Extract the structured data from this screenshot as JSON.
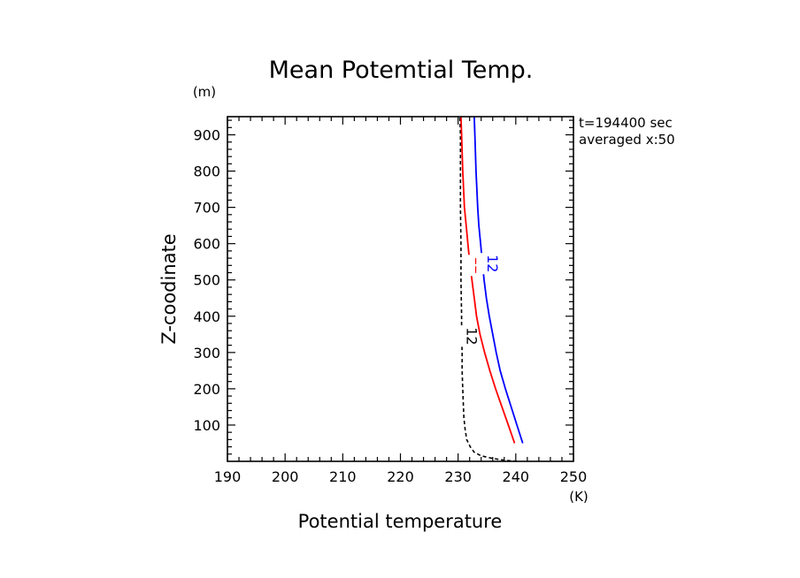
{
  "chart_data": {
    "type": "line",
    "title": "Mean Potemtial Temp.",
    "xlabel": "Potential temperature",
    "ylabel": "Z-coodinate",
    "xunit": "(K)",
    "yunit": "(m)",
    "xlim": [
      190,
      250
    ],
    "ylim": [
      0,
      950
    ],
    "xticks": [
      190,
      200,
      210,
      220,
      230,
      240,
      250
    ],
    "yticks": [
      100,
      200,
      300,
      400,
      500,
      600,
      700,
      800,
      900
    ],
    "grid": false,
    "annotations": [
      "t=194400 sec",
      "averaged  x:50"
    ],
    "series": [
      {
        "label": "12",
        "color": "#000000",
        "dashed": true,
        "x": [
          240.2,
          238.0,
          236.0,
          234.0,
          232.8,
          232.1,
          231.5,
          231.2,
          231.0,
          230.9,
          230.8,
          230.7,
          230.7,
          230.6,
          230.6,
          230.5,
          230.5,
          230.4,
          230.4,
          230.4,
          230.3
        ],
        "y": [
          0,
          3,
          8,
          15,
          25,
          40,
          60,
          90,
          120,
          160,
          200,
          250,
          300,
          350,
          400,
          500,
          600,
          700,
          800,
          900,
          950
        ]
      },
      {
        "label": "12",
        "color": "#ff0000",
        "dashed": false,
        "x": [
          239.8,
          238.7,
          237.6,
          236.5,
          235.5,
          234.6,
          233.8,
          233.2,
          232.8,
          232.4,
          232.0,
          231.7,
          231.4,
          231.1,
          230.8,
          230.6,
          230.5
        ],
        "y": [
          50,
          100,
          150,
          200,
          250,
          300,
          350,
          400,
          450,
          500,
          550,
          600,
          650,
          700,
          800,
          900,
          950
        ]
      },
      {
        "label": "12",
        "color": "#0000ff",
        "dashed": false,
        "x": [
          241.2,
          240.2,
          239.2,
          238.2,
          237.3,
          236.6,
          236.0,
          235.4,
          234.9,
          234.5,
          234.2,
          233.9,
          233.6,
          233.4,
          233.1,
          232.9,
          232.8
        ],
        "y": [
          50,
          100,
          150,
          200,
          250,
          300,
          350,
          400,
          450,
          500,
          550,
          600,
          650,
          700,
          800,
          900,
          950
        ]
      }
    ]
  }
}
